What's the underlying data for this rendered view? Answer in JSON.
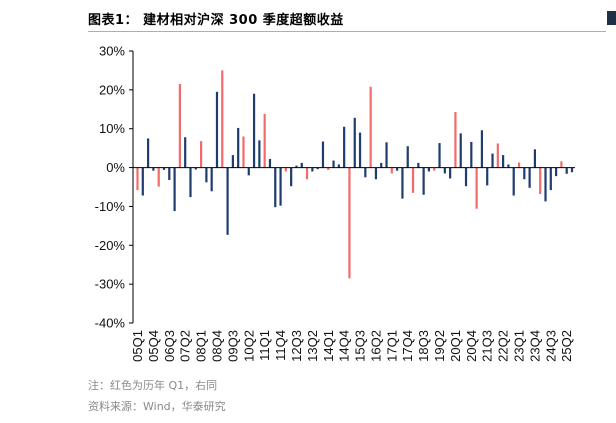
{
  "header": {
    "title": "图表1：  建材相对沪深 300 季度超额收益"
  },
  "footer": {
    "note": "注：红色为历年 Q1，右同",
    "source": "资料来源：Wind，华泰研究"
  },
  "colors": {
    "q1_bar": "#f26b6b",
    "other_bar": "#1f3c6e",
    "axis": "#000000",
    "title_rule": "#9fb2c4",
    "note_text": "#8a8a8a"
  },
  "chart_data": {
    "type": "bar",
    "title": "建材相对沪深 300 季度超额收益",
    "xlabel": "",
    "ylabel": "",
    "ylim": [
      -40,
      30
    ],
    "yticks": [
      -40,
      -30,
      -20,
      -10,
      0,
      10,
      20,
      30
    ],
    "ytick_labels": [
      "-40%",
      "-30%",
      "-20%",
      "-10%",
      "0%",
      "10%",
      "20%",
      "30%"
    ],
    "grid": false,
    "legend": "none",
    "xtick_labels": [
      "05Q1",
      "05Q4",
      "06Q3",
      "07Q2",
      "08Q1",
      "08Q4",
      "09Q3",
      "10Q2",
      "11Q1",
      "11Q4",
      "12Q3",
      "13Q2",
      "14Q1",
      "14Q4",
      "15Q3",
      "16Q2",
      "17Q1",
      "17Q4",
      "18Q3",
      "19Q2",
      "20Q1",
      "20Q4",
      "21Q3",
      "22Q2",
      "23Q1",
      "23Q4",
      "24Q3",
      "25Q2"
    ],
    "categories": [
      "05Q1",
      "05Q2",
      "05Q3",
      "05Q4",
      "06Q1",
      "06Q2",
      "06Q3",
      "06Q4",
      "07Q1",
      "07Q2",
      "07Q3",
      "07Q4",
      "08Q1",
      "08Q2",
      "08Q3",
      "08Q4",
      "09Q1",
      "09Q2",
      "09Q3",
      "09Q4",
      "10Q1",
      "10Q2",
      "10Q3",
      "10Q4",
      "11Q1",
      "11Q2",
      "11Q3",
      "11Q4",
      "12Q1",
      "12Q2",
      "12Q3",
      "12Q4",
      "13Q1",
      "13Q2",
      "13Q3",
      "13Q4",
      "14Q1",
      "14Q2",
      "14Q3",
      "14Q4",
      "15Q1",
      "15Q2",
      "15Q3",
      "15Q4",
      "16Q1",
      "16Q2",
      "16Q3",
      "16Q4",
      "17Q1",
      "17Q2",
      "17Q3",
      "17Q4",
      "18Q1",
      "18Q2",
      "18Q3",
      "18Q4",
      "19Q1",
      "19Q2",
      "19Q3",
      "19Q4",
      "20Q1",
      "20Q2",
      "20Q3",
      "20Q4",
      "21Q1",
      "21Q2",
      "21Q3",
      "21Q4",
      "22Q1",
      "22Q2",
      "22Q3",
      "22Q4",
      "23Q1",
      "23Q2",
      "23Q3",
      "23Q4",
      "24Q1",
      "24Q2",
      "24Q3",
      "24Q4",
      "25Q1",
      "25Q2",
      "25Q3"
    ],
    "values": [
      -5.8,
      -7.2,
      7.5,
      -0.8,
      -4.9,
      -0.6,
      -3.2,
      -11.2,
      21.5,
      7.8,
      -7.6,
      -0.5,
      6.8,
      -3.8,
      -6.1,
      19.5,
      25.0,
      -17.3,
      3.2,
      10.2,
      8.0,
      -2.0,
      19.0,
      7.0,
      13.8,
      2.2,
      -10.2,
      -9.8,
      -1.0,
      -4.8,
      0.5,
      1.2,
      -3.0,
      -1.0,
      -0.4,
      6.7,
      -0.6,
      1.8,
      0.8,
      10.5,
      -28.5,
      12.8,
      9.0,
      -2.5,
      20.8,
      -3.0,
      1.2,
      6.5,
      -1.5,
      -0.8,
      -8.0,
      5.5,
      -6.5,
      1.2,
      -7.0,
      -1.0,
      -0.8,
      6.3,
      -1.5,
      -2.8,
      14.3,
      8.8,
      -4.8,
      6.6,
      -10.6,
      9.6,
      -4.6,
      3.6,
      6.2,
      3.2,
      0.8,
      -7.2,
      1.3,
      -3.0,
      -5.2,
      4.7,
      -6.8,
      -8.7,
      -5.8,
      -2.2,
      1.6,
      -1.6,
      -1.2
    ]
  }
}
